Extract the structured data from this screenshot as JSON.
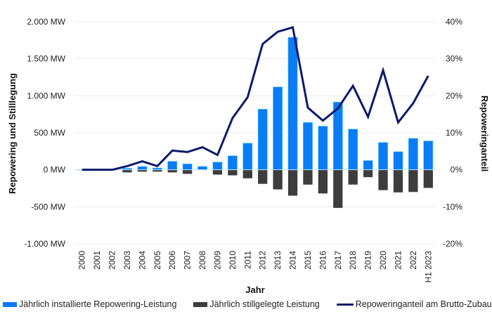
{
  "chart_data": {
    "type": "bar+line",
    "title": "",
    "xlabel": "Jahr",
    "ylabel": "Repowering und Stilllegung",
    "y2label": "Repoweringanteil",
    "categories": [
      "2000",
      "2001",
      "2002",
      "2003",
      "2004",
      "2005",
      "2006",
      "2007",
      "2008",
      "2009",
      "2010",
      "2011",
      "2012",
      "2013",
      "2014",
      "2015",
      "2016",
      "2017",
      "2018",
      "2019",
      "2020",
      "2021",
      "2022",
      "H1 2023"
    ],
    "ylim": [
      -1000,
      2000
    ],
    "y2lim": [
      -20,
      40
    ],
    "yticks": [
      {
        "value": 2000,
        "label": "2.000 MW"
      },
      {
        "value": 1500,
        "label": "1.500 MW"
      },
      {
        "value": 1000,
        "label": "1.000 MW"
      },
      {
        "value": 500,
        "label": "500 MW"
      },
      {
        "value": 0,
        "label": "0 MW"
      },
      {
        "value": -500,
        "label": "-500 MW"
      },
      {
        "value": -1000,
        "label": "-1.000 MW"
      }
    ],
    "y2ticks": [
      {
        "value": 40,
        "label": "40%"
      },
      {
        "value": 30,
        "label": "30%"
      },
      {
        "value": 20,
        "label": "20%"
      },
      {
        "value": 10,
        "label": "10%"
      },
      {
        "value": 0,
        "label": "0%"
      },
      {
        "value": -10,
        "label": "-10%"
      },
      {
        "value": -20,
        "label": "-20%"
      }
    ],
    "grid": true,
    "legend_position": "bottom",
    "series": [
      {
        "name": "Jährlich installierte Repowering-Leistung",
        "type": "bar",
        "axis": "left",
        "color": "#0a7cf5",
        "values": [
          5,
          3,
          5,
          20,
          45,
          25,
          115,
          80,
          45,
          105,
          190,
          360,
          820,
          1120,
          1790,
          640,
          590,
          915,
          550,
          125,
          370,
          245,
          425,
          390
        ]
      },
      {
        "name": "Jährlich stillgelegte Leistung",
        "type": "bar",
        "axis": "left",
        "color": "#3d3d3d",
        "values": [
          0,
          0,
          0,
          -35,
          -25,
          -25,
          -35,
          -55,
          0,
          -65,
          -75,
          -115,
          -190,
          -265,
          -350,
          -200,
          -320,
          -515,
          -200,
          -100,
          -275,
          -305,
          -300,
          -245
        ]
      },
      {
        "name": "Repoweringanteil am Brutto-Zubau",
        "type": "line",
        "axis": "right",
        "color": "#0b1a6b",
        "values": [
          0,
          0,
          0,
          1,
          2.3,
          1,
          5.2,
          4.8,
          6.1,
          4,
          14,
          19.6,
          34,
          37.3,
          38.5,
          16.8,
          13.3,
          16.6,
          22.7,
          14.3,
          26.9,
          12.8,
          18,
          25.4
        ]
      }
    ]
  }
}
